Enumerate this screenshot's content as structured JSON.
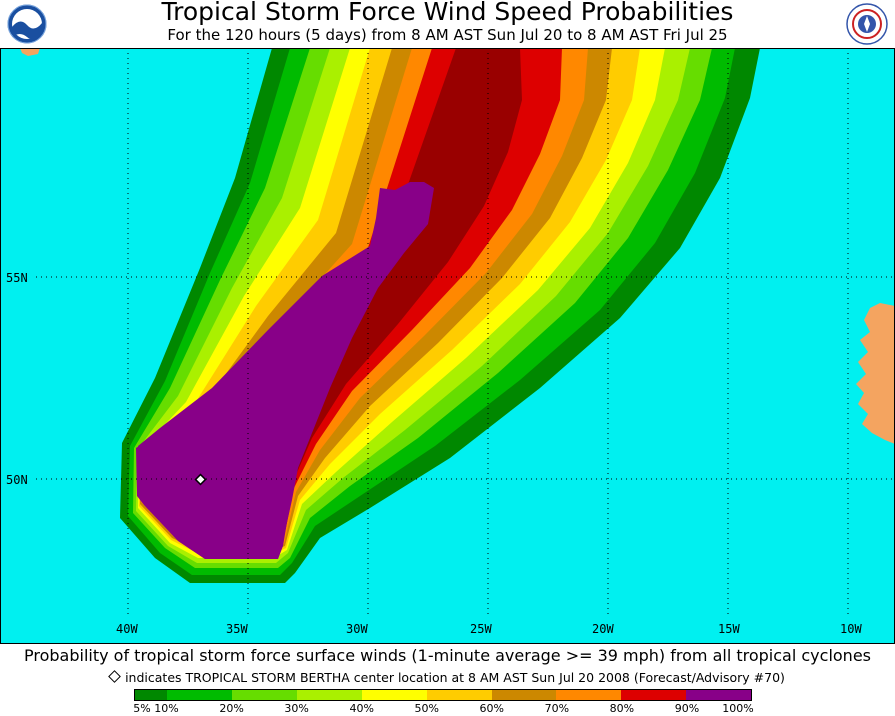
{
  "header": {
    "title": "Tropical Storm Force Wind Speed Probabilities",
    "subtitle": "For the 120 hours (5 days) from 8 AM AST Sun Jul 20 to 8 AM AST Fri Jul 25",
    "left_logo": "noaa-logo",
    "right_logo": "nws-logo"
  },
  "map": {
    "lat_labels": [
      "55N",
      "50N"
    ],
    "lon_labels": [
      "40W",
      "35W",
      "30W",
      "25W",
      "20W",
      "15W",
      "10W"
    ],
    "ocean_color": "#00f0f0",
    "land_color": "#f4a460",
    "storm_center_marker": "diamond"
  },
  "caption": {
    "main": "Probability of tropical storm force surface winds (1-minute average >= 39 mph) from all tropical cyclones",
    "note": "indicates TROPICAL STORM BERTHA center location at 8 AM AST Sun Jul 20 2008 (Forecast/Advisory #70)"
  },
  "legend": {
    "colors": [
      "#008800",
      "#00bb00",
      "#66dd00",
      "#aaf000",
      "#ffff00",
      "#ffcc00",
      "#cc8800",
      "#ff8800",
      "#dd0000",
      "#990000",
      "#880088"
    ],
    "labels": [
      "5%",
      "10%",
      "20%",
      "30%",
      "40%",
      "50%",
      "60%",
      "70%",
      "80%",
      "90%",
      "100%"
    ]
  }
}
